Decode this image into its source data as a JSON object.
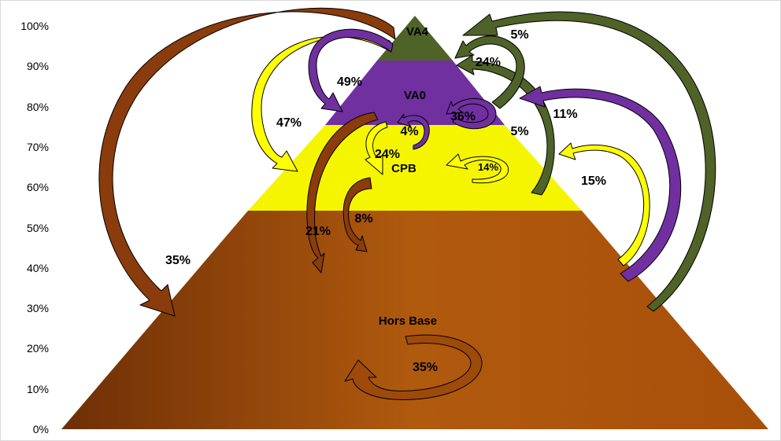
{
  "colors": {
    "hors_base": "#a84f0a",
    "cpb": "#f5f500",
    "va0": "#7030a0",
    "va4": "#4f6228",
    "arrow_brown": "#8a3c0c",
    "arrow_yellow": "#ffff00",
    "arrow_purple": "#7030a0",
    "arrow_green": "#4f6228"
  },
  "axis": {
    "y_ticks": [
      "100%",
      "90%",
      "80%",
      "70%",
      "60%",
      "50%",
      "40%",
      "30%",
      "20%",
      "10%",
      "0%"
    ]
  },
  "levels": [
    {
      "name": "VA4",
      "from": 0.95,
      "to": 1.0
    },
    {
      "name": "VA0",
      "from": 0.75,
      "to": 0.95
    },
    {
      "name": "CPB",
      "from": 0.54,
      "to": 0.75
    },
    {
      "name": "Hors Base",
      "from": 0.0,
      "to": 0.54
    }
  ],
  "flows": [
    {
      "from": "VA4",
      "to": "Hors Base",
      "label": "35%"
    },
    {
      "from": "VA4",
      "to": "CPB",
      "label": "47%"
    },
    {
      "from": "VA4",
      "to": "VA0",
      "label": "49%"
    },
    {
      "from": "VA0",
      "to": "VA0",
      "label": "36%"
    },
    {
      "from": "VA0",
      "to": "CPB",
      "label": "4%"
    },
    {
      "from": "VA0",
      "to": "CPB",
      "label": "24%"
    },
    {
      "from": "VA0",
      "to": "Hors Base",
      "label": "21%"
    },
    {
      "from": "CPB",
      "to": "Hors Base",
      "label": "8%"
    },
    {
      "from": "CPB",
      "to": "CPB",
      "label": "14%"
    },
    {
      "from": "CPB",
      "to": "VA4",
      "label": "24%"
    },
    {
      "from": "VA0",
      "to": "VA4",
      "label": "5%"
    },
    {
      "from": "Hors Base",
      "to": "VA4",
      "label": "5%"
    },
    {
      "from": "Hors Base",
      "to": "VA0",
      "label": "11%"
    },
    {
      "from": "Hors Base",
      "to": "CPB",
      "label": "15%"
    },
    {
      "from": "Hors Base",
      "to": "Hors Base",
      "label": "35%"
    }
  ]
}
